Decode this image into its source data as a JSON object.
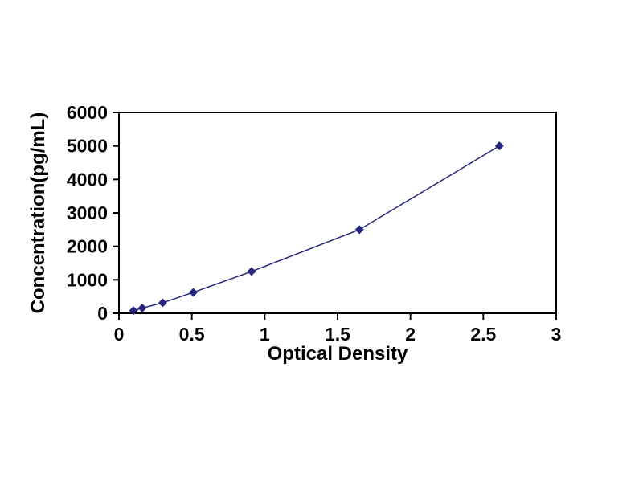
{
  "chart_data": {
    "type": "line",
    "title": "",
    "xlabel": "Optical Density",
    "ylabel": "Concentration(pg/mL)",
    "x": [
      0.1,
      0.16,
      0.3,
      0.51,
      0.91,
      1.65,
      2.61
    ],
    "y": [
      78,
      156,
      313,
      625,
      1250,
      2500,
      5000
    ],
    "xlim": [
      0,
      3
    ],
    "ylim": [
      0,
      6000
    ],
    "x_ticks": [
      0,
      0.5,
      1,
      1.5,
      2,
      2.5,
      3
    ],
    "y_ticks": [
      0,
      1000,
      2000,
      3000,
      4000,
      5000,
      6000
    ],
    "grid": false,
    "legend": "none",
    "marker": "diamond",
    "line_color": "#26267e",
    "marker_color": "#26267e",
    "axis_color": "#000000",
    "background_color": "#ffffff"
  }
}
